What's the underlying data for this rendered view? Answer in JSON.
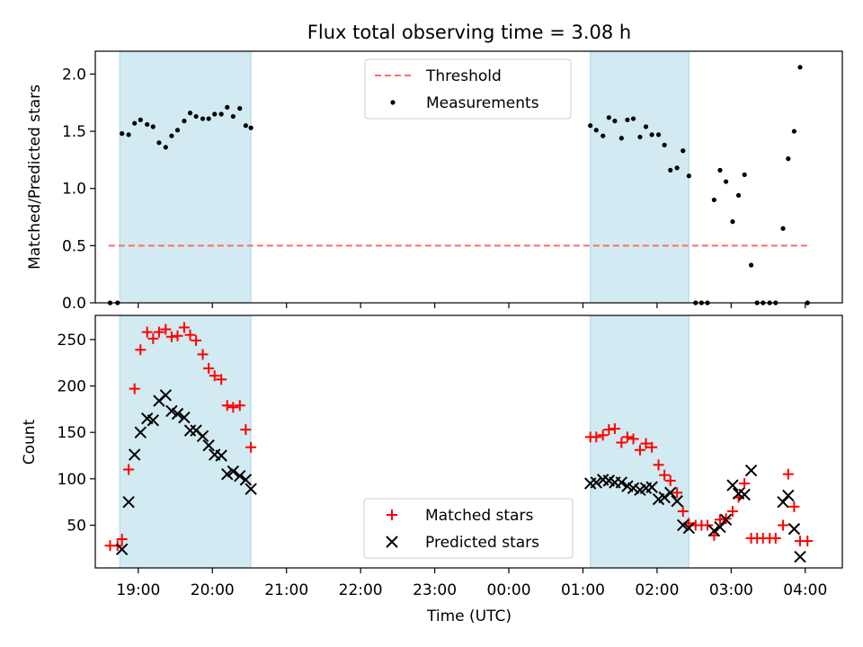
{
  "figure_title": "Flux total observing time = 3.08 h",
  "colors": {
    "threshold": "#ff6b6b",
    "shade": "#add8e6",
    "matched": "#ff0000",
    "predicted": "#000000",
    "measurement": "#000000"
  },
  "chart_data": [
    {
      "type": "scatter",
      "panel": "top",
      "title": "Flux total observing time = 3.08 h",
      "xlabel": "",
      "ylabel": "Matched/Predicted stars",
      "xlim": [
        18.42,
        28.5
      ],
      "ylim": [
        0,
        2.2
      ],
      "yticks": [
        0.0,
        0.5,
        1.0,
        1.5,
        2.0
      ],
      "ytick_labels": [
        "0.0",
        "0.5",
        "1.0",
        "1.5",
        "2.0"
      ],
      "shaded_intervals": [
        [
          18.75,
          20.52
        ],
        [
          25.1,
          26.43
        ]
      ],
      "threshold": {
        "label": "Threshold",
        "value": 0.5,
        "x_range": [
          18.6,
          28.05
        ]
      },
      "legend": {
        "location": "top-center",
        "entries": [
          "Threshold",
          "Measurements"
        ]
      },
      "series": [
        {
          "name": "Measurements",
          "x": [
            18.62,
            18.72,
            18.78,
            18.87,
            18.95,
            19.03,
            19.12,
            19.2,
            19.28,
            19.37,
            19.45,
            19.53,
            19.62,
            19.7,
            19.78,
            19.87,
            19.95,
            20.03,
            20.12,
            20.2,
            20.28,
            20.37,
            20.45,
            20.52,
            25.1,
            25.18,
            25.27,
            25.35,
            25.43,
            25.52,
            25.6,
            25.68,
            25.77,
            25.85,
            25.93,
            26.02,
            26.1,
            26.18,
            26.27,
            26.35,
            26.43,
            26.52,
            26.6,
            26.68,
            26.77,
            26.85,
            26.93,
            27.02,
            27.1,
            27.18,
            27.27,
            27.35,
            27.43,
            27.52,
            27.6,
            27.7,
            27.77,
            27.85,
            27.93,
            28.03
          ],
          "y": [
            0.0,
            0.0,
            1.48,
            1.47,
            1.57,
            1.6,
            1.56,
            1.54,
            1.4,
            1.36,
            1.46,
            1.51,
            1.59,
            1.66,
            1.63,
            1.61,
            1.61,
            1.65,
            1.65,
            1.71,
            1.63,
            1.7,
            1.55,
            1.53,
            1.55,
            1.51,
            1.46,
            1.62,
            1.59,
            1.44,
            1.6,
            1.61,
            1.45,
            1.54,
            1.47,
            1.47,
            1.38,
            1.16,
            1.18,
            1.33,
            1.11,
            0.0,
            0.0,
            0.0,
            0.9,
            1.16,
            1.06,
            0.71,
            0.94,
            1.12,
            0.33,
            0.0,
            0.0,
            0.0,
            0.0,
            0.65,
            1.26,
            1.5,
            2.06,
            0.0
          ]
        }
      ]
    },
    {
      "type": "scatter",
      "panel": "bottom",
      "xlabel": "Time (UTC)",
      "ylabel": "Count",
      "xlim": [
        18.42,
        28.5
      ],
      "ylim": [
        4,
        276
      ],
      "xticks": [
        19,
        20,
        21,
        22,
        23,
        24,
        25,
        26,
        27,
        28
      ],
      "xtick_labels": [
        "19:00",
        "20:00",
        "21:00",
        "22:00",
        "23:00",
        "00:00",
        "01:00",
        "02:00",
        "03:00",
        "04:00"
      ],
      "yticks": [
        50,
        100,
        150,
        200,
        250
      ],
      "ytick_labels": [
        "50",
        "100",
        "150",
        "200",
        "250"
      ],
      "shaded_intervals": [
        [
          18.75,
          20.52
        ],
        [
          25.1,
          26.43
        ]
      ],
      "legend": {
        "location": "bottom-center",
        "entries": [
          "Matched stars",
          "Predicted stars"
        ]
      },
      "series": [
        {
          "name": "Matched stars",
          "marker": "plus",
          "x": [
            18.62,
            18.72,
            18.78,
            18.87,
            18.95,
            19.03,
            19.12,
            19.2,
            19.28,
            19.37,
            19.45,
            19.53,
            19.62,
            19.7,
            19.78,
            19.87,
            19.95,
            20.03,
            20.12,
            20.2,
            20.28,
            20.37,
            20.45,
            20.52,
            25.1,
            25.18,
            25.27,
            25.35,
            25.43,
            25.52,
            25.6,
            25.68,
            25.77,
            25.85,
            25.93,
            26.02,
            26.1,
            26.18,
            26.27,
            26.35,
            26.43,
            26.52,
            26.6,
            26.68,
            26.77,
            26.85,
            26.93,
            27.02,
            27.1,
            27.18,
            27.27,
            27.35,
            27.43,
            27.52,
            27.6,
            27.7,
            27.77,
            27.85,
            27.93,
            28.03
          ],
          "y": [
            28,
            28,
            35,
            110,
            197,
            239,
            258,
            251,
            258,
            261,
            253,
            254,
            263,
            255,
            249,
            234,
            219,
            211,
            207,
            179,
            177,
            179,
            153,
            134,
            145,
            145,
            147,
            153,
            154,
            139,
            145,
            143,
            131,
            138,
            134,
            115,
            104,
            98,
            85,
            65,
            52,
            50,
            50,
            50,
            39,
            56,
            57,
            65,
            80,
            95,
            36,
            36,
            36,
            36,
            36,
            50,
            105,
            70,
            33,
            33
          ]
        },
        {
          "name": "Predicted stars",
          "marker": "x",
          "x": [
            18.78,
            18.87,
            18.95,
            19.03,
            19.12,
            19.2,
            19.28,
            19.37,
            19.45,
            19.53,
            19.62,
            19.7,
            19.78,
            19.87,
            19.95,
            20.03,
            20.12,
            20.2,
            20.28,
            20.37,
            20.45,
            20.52,
            25.1,
            25.18,
            25.27,
            25.35,
            25.43,
            25.52,
            25.6,
            25.68,
            25.77,
            25.85,
            25.93,
            26.02,
            26.1,
            26.18,
            26.27,
            26.35,
            26.43,
            26.77,
            26.85,
            26.93,
            27.02,
            27.1,
            27.18,
            27.27,
            27.7,
            27.77,
            27.85,
            27.93
          ],
          "y": [
            24,
            75,
            126,
            150,
            165,
            163,
            184,
            190,
            173,
            170,
            166,
            152,
            152,
            146,
            136,
            126,
            125,
            105,
            108,
            103,
            99,
            89,
            95,
            96,
            99,
            98,
            96,
            96,
            92,
            90,
            88,
            90,
            91,
            78,
            80,
            85,
            76,
            50,
            47,
            44,
            48,
            56,
            93,
            84,
            83,
            109,
            75,
            82,
            46,
            16
          ]
        }
      ]
    }
  ]
}
